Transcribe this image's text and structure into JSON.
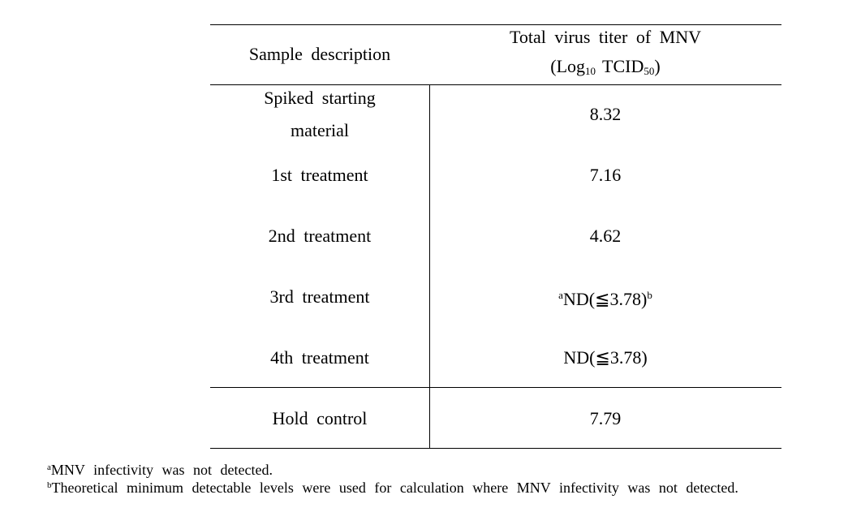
{
  "table": {
    "header": [
      "Sample description",
      {
        "line1": "Total virus titer of MNV",
        "line2": [
          "(Log",
          "10",
          "TCID",
          "50",
          ")"
        ]
      }
    ],
    "rows": [
      [
        "Spiked starting material",
        "8.32"
      ],
      [
        "1st treatment",
        "7.16"
      ],
      [
        "2nd treatment",
        "4.62"
      ],
      [
        "3rd treatment",
        {
          "pre": "a",
          "text": "ND(≦3.78)",
          "post": "b"
        }
      ],
      [
        "4th treatment",
        "ND(≦3.78)"
      ],
      [
        "Hold control",
        "7.79"
      ]
    ]
  },
  "footnotes": [
    {
      "mark": "a",
      "text": "MNV infectivity was not detected."
    },
    {
      "mark": "b",
      "text": "Theoretical minimum detectable levels were used for calculation where MNV infectivity was not detected."
    }
  ]
}
